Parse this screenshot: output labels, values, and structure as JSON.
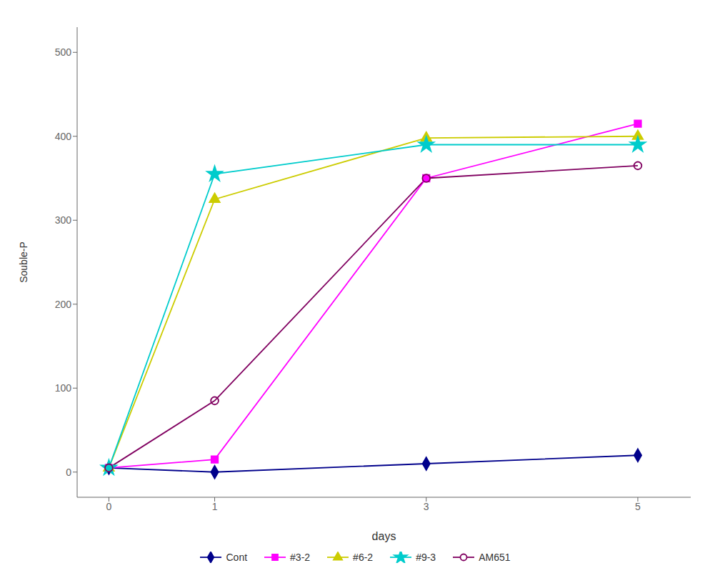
{
  "chart_data": {
    "type": "line",
    "xlabel": "days",
    "ylabel": "Souble-P",
    "x": [
      0,
      1,
      3,
      5
    ],
    "series": [
      {
        "name": "Cont",
        "color": "#00008B",
        "marker": "diamond",
        "values": [
          5,
          0,
          10,
          20
        ]
      },
      {
        "name": "#3-2",
        "color": "#FF00FF",
        "marker": "square",
        "values": [
          5,
          15,
          350,
          415
        ]
      },
      {
        "name": "#6-2",
        "color": "#CCCC00",
        "marker": "triangle",
        "values": [
          5,
          325,
          398,
          400
        ]
      },
      {
        "name": "#9-3",
        "color": "#00CCCC",
        "marker": "star",
        "values": [
          5,
          355,
          390,
          390
        ]
      },
      {
        "name": "AM651",
        "color": "#800060",
        "marker": "open_circle",
        "values": [
          5,
          85,
          350,
          365
        ]
      }
    ],
    "xlim": [
      -0.3,
      5.5
    ],
    "xticks": [
      0,
      1,
      3,
      5
    ],
    "ylim": [
      -30,
      530
    ],
    "yticks": [
      0,
      100,
      200,
      300,
      400,
      500
    ],
    "grid": false,
    "legend": "bottom"
  }
}
